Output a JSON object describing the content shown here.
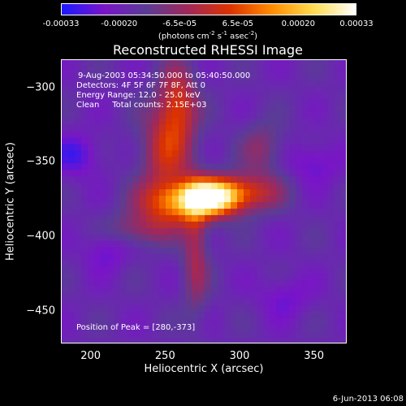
{
  "colorbar": {
    "unit_text": "(photons cm",
    "unit_exp1": "-2",
    "unit_mid": " s",
    "unit_exp2": "-1",
    "unit_tail": " asec",
    "unit_exp3": "-2",
    "unit_close": ")",
    "range": [
      -0.00033,
      0.00033
    ],
    "ticks": [
      {
        "label": "-0.00033",
        "value": -0.00033
      },
      {
        "label": "-0.00020",
        "value": -0.0002
      },
      {
        "label": "-6.5e-05",
        "value": -6.5e-05
      },
      {
        "label": "6.5e-05",
        "value": 6.5e-05
      },
      {
        "label": "0.00020",
        "value": 0.0002
      },
      {
        "label": "0.00033",
        "value": 0.00033
      }
    ]
  },
  "chart_data": {
    "type": "heatmap",
    "title": "Reconstructed RHESSI Image",
    "xlabel": "Heliocentric X (arcsec)",
    "ylabel": "Heliocentric Y (arcsec)",
    "xlim": [
      180,
      372
    ],
    "ylim": [
      -472,
      -281
    ],
    "xticks": [
      200,
      250,
      300,
      350
    ],
    "yticks": [
      -300,
      -350,
      -400,
      -450
    ],
    "annotations": {
      "time_range": "9-Aug-2003 05:34:50.000 to 05:40:50.000",
      "detectors": "Detectors: 4F 5F 6F 7F 8F, Att 0",
      "energy": "Energy Range: 12.0 - 25.0 keV",
      "method": "Clean     Total counts: 2.15E+03",
      "peak": "Position of Peak = [280,-373]"
    },
    "peak_position": [
      280,
      -373
    ],
    "total_counts": 2150,
    "energy_range_kev": [
      12.0,
      25.0
    ],
    "colormap": [
      "#1a1aff",
      "#7a14c8",
      "#5a3c96",
      "#a0285a",
      "#dc3200",
      "#ff8c00",
      "#ffdc50",
      "#ffffff"
    ]
  },
  "footer": {
    "timestamp": "6-Jun-2013 06:08"
  }
}
